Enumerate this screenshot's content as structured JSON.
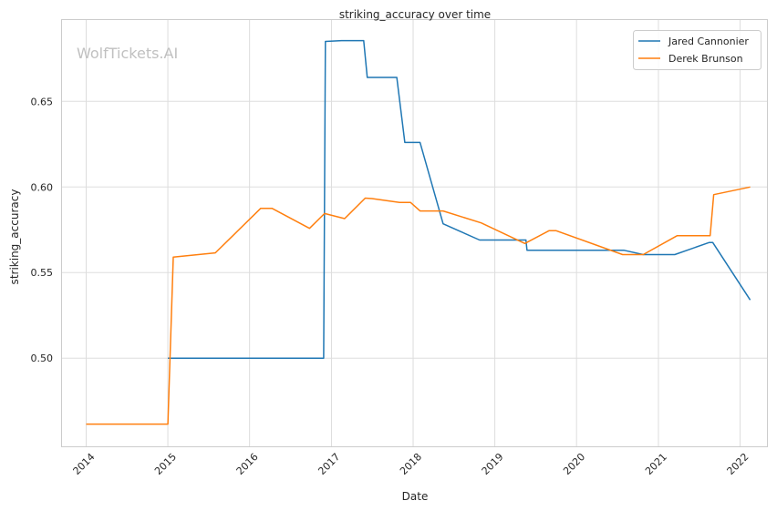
{
  "chart_data": {
    "type": "line",
    "title": "striking_accuracy over time",
    "xlabel": "Date",
    "ylabel": "striking_accuracy",
    "xlim": [
      "2013-09-15",
      "2022-05-01"
    ],
    "ylim": [
      0.4485,
      0.6975
    ],
    "x_ticks": [
      "2014",
      "2015",
      "2016",
      "2017",
      "2018",
      "2019",
      "2020",
      "2021",
      "2022"
    ],
    "y_ticks": [
      0.5,
      0.55,
      0.6,
      0.65
    ],
    "y_tick_labels": [
      "0.50",
      "0.55",
      "0.60",
      "0.65"
    ],
    "grid": true,
    "legend_position": "top-right",
    "watermark": "WolfTickets.AI",
    "series": [
      {
        "name": "Jared Cannonier",
        "color": "#1f77b4",
        "points": [
          [
            "2015-01-01",
            0.5
          ],
          [
            "2016-11-27",
            0.5
          ],
          [
            "2016-12-05",
            0.685
          ],
          [
            "2017-02-15",
            0.6855
          ],
          [
            "2017-05-25",
            0.6855
          ],
          [
            "2017-06-10",
            0.664
          ],
          [
            "2017-10-20",
            0.664
          ],
          [
            "2017-11-25",
            0.626
          ],
          [
            "2018-02-01",
            0.626
          ],
          [
            "2018-05-15",
            0.5785
          ],
          [
            "2018-10-25",
            0.569
          ],
          [
            "2019-05-20",
            0.569
          ],
          [
            "2019-05-25",
            0.563
          ],
          [
            "2020-08-01",
            0.563
          ],
          [
            "2020-10-25",
            0.5605
          ],
          [
            "2021-03-15",
            0.5605
          ],
          [
            "2021-08-15",
            0.5675
          ],
          [
            "2021-09-01",
            0.5675
          ],
          [
            "2022-02-15",
            0.534
          ]
        ]
      },
      {
        "name": "Derek Brunson",
        "color": "#ff7f0e",
        "points": [
          [
            "2014-01-01",
            0.4615
          ],
          [
            "2015-01-01",
            0.4615
          ],
          [
            "2015-01-25",
            0.559
          ],
          [
            "2015-08-01",
            0.5615
          ],
          [
            "2016-02-20",
            0.5875
          ],
          [
            "2016-04-10",
            0.5875
          ],
          [
            "2016-09-25",
            0.5758
          ],
          [
            "2016-12-01",
            0.5845
          ],
          [
            "2017-03-01",
            0.5815
          ],
          [
            "2017-06-01",
            0.5935
          ],
          [
            "2017-07-01",
            0.5932
          ],
          [
            "2017-11-01",
            0.591
          ],
          [
            "2017-12-20",
            0.591
          ],
          [
            "2018-02-01",
            0.586
          ],
          [
            "2018-05-15",
            0.586
          ],
          [
            "2018-11-01",
            0.579
          ],
          [
            "2019-05-15",
            0.567
          ],
          [
            "2019-09-01",
            0.5745
          ],
          [
            "2019-10-01",
            0.5745
          ],
          [
            "2020-07-25",
            0.5605
          ],
          [
            "2020-10-25",
            0.5605
          ],
          [
            "2021-03-25",
            0.5715
          ],
          [
            "2021-08-20",
            0.5715
          ],
          [
            "2021-09-05",
            0.5955
          ],
          [
            "2022-02-15",
            0.6
          ]
        ]
      }
    ]
  }
}
